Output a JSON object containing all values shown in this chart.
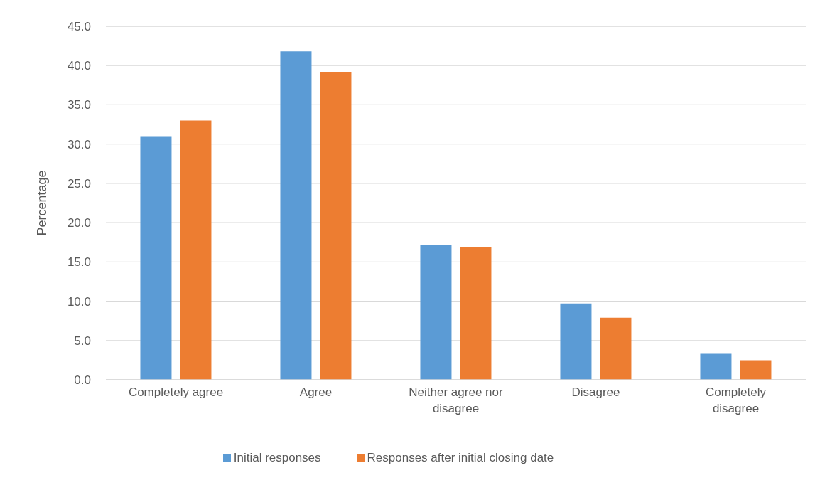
{
  "chart_data": {
    "type": "bar",
    "ylabel": "Percentage",
    "categories": [
      "Completely agree",
      "Agree",
      "Neither agree nor disagree",
      "Disagree",
      "Completely disagree"
    ],
    "series": [
      {
        "name": "Initial responses",
        "color": "#5b9bd5",
        "values": [
          31.0,
          41.8,
          17.2,
          9.7,
          3.3
        ]
      },
      {
        "name": "Responses after initial closing date",
        "color": "#ed7d31",
        "values": [
          33.0,
          39.2,
          16.9,
          7.9,
          2.5
        ]
      }
    ],
    "ylim": [
      0,
      45
    ],
    "yticks": [
      {
        "value": 0,
        "label": "0.0"
      },
      {
        "value": 5,
        "label": "5.0"
      },
      {
        "value": 10,
        "label": "10.0"
      },
      {
        "value": 15,
        "label": "15.0"
      },
      {
        "value": 20,
        "label": "20.0"
      },
      {
        "value": 25,
        "label": "25.0"
      },
      {
        "value": 30,
        "label": "30.0"
      },
      {
        "value": 35,
        "label": "35.0"
      },
      {
        "value": 40,
        "label": "40.0"
      },
      {
        "value": 45,
        "label": "45.0"
      }
    ],
    "grid": "y",
    "legend": "bottom"
  }
}
